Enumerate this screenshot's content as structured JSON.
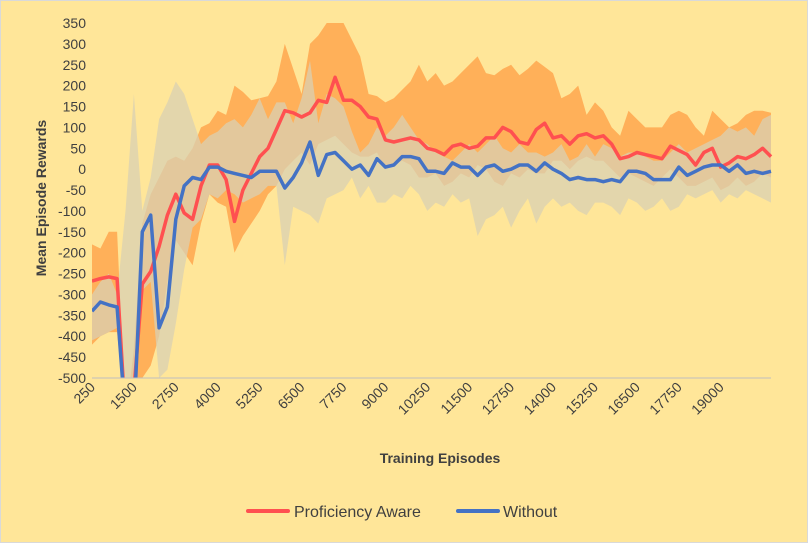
{
  "chart_data": {
    "type": "line",
    "title": "",
    "xlabel": "Training Episodes",
    "ylabel": "Mean Episode Rewards",
    "ylim": [
      -500,
      350
    ],
    "y_ticks": [
      350,
      300,
      250,
      200,
      150,
      100,
      50,
      0,
      -50,
      -100,
      -150,
      -200,
      -250,
      -300,
      -350,
      -400,
      -450,
      -500
    ],
    "x_tick_labels": [
      "250",
      "1500",
      "2750",
      "4000",
      "5250",
      "6500",
      "7750",
      "9000",
      "10250",
      "11500",
      "12750",
      "14000",
      "15250",
      "16500",
      "17750",
      "19000"
    ],
    "x_start": 250,
    "x_step": 250,
    "grid": false,
    "legend_position": "bottom",
    "series": [
      {
        "name": "Proficiency Aware",
        "color": "#ff5050",
        "band_color": "#ffa64d",
        "values": [
          -268,
          -262,
          -258,
          -262,
          -600,
          -530,
          -275,
          -245,
          -185,
          -110,
          -60,
          -105,
          -120,
          -40,
          10,
          10,
          -25,
          -125,
          -50,
          -10,
          30,
          50,
          95,
          140,
          135,
          125,
          135,
          165,
          160,
          220,
          165,
          165,
          150,
          125,
          120,
          70,
          65,
          70,
          75,
          70,
          50,
          45,
          35,
          55,
          60,
          50,
          55,
          75,
          75,
          100,
          90,
          65,
          60,
          95,
          110,
          75,
          80,
          60,
          80,
          85,
          75,
          80,
          60,
          25,
          30,
          40,
          35,
          30,
          25,
          55,
          45,
          35,
          10,
          40,
          50,
          5,
          15,
          30,
          25,
          35,
          50,
          30
        ],
        "upper": [
          -180,
          -190,
          -150,
          -150,
          -600,
          -430,
          -130,
          -60,
          -20,
          20,
          30,
          20,
          50,
          100,
          110,
          140,
          130,
          200,
          185,
          165,
          170,
          175,
          210,
          300,
          240,
          180,
          300,
          320,
          350,
          350,
          350,
          310,
          270,
          180,
          175,
          160,
          170,
          190,
          210,
          250,
          210,
          230,
          200,
          210,
          230,
          250,
          270,
          230,
          225,
          240,
          250,
          225,
          240,
          260,
          245,
          230,
          170,
          180,
          200,
          130,
          160,
          140,
          100,
          80,
          140,
          120,
          100,
          100,
          100,
          130,
          140,
          130,
          100,
          80,
          140,
          120,
          100,
          110,
          130,
          140,
          140,
          135
        ],
        "lower": [
          -420,
          -400,
          -390,
          -390,
          -600,
          -600,
          -500,
          -470,
          -400,
          -270,
          -170,
          -200,
          -230,
          -130,
          -60,
          -80,
          -90,
          -200,
          -160,
          -130,
          -100,
          -60,
          -40,
          0,
          20,
          40,
          10,
          60,
          70,
          80,
          60,
          40,
          30,
          30,
          40,
          0,
          10,
          20,
          10,
          -20,
          -20,
          -10,
          -40,
          -30,
          -10,
          -20,
          10,
          0,
          -30,
          -40,
          -10,
          -20,
          0,
          -10,
          -10,
          20,
          20,
          0,
          20,
          30,
          20,
          20,
          0,
          -20,
          -10,
          -20,
          -30,
          -40,
          -20,
          0,
          -20,
          -40,
          -40,
          -30,
          -20,
          -50,
          -40,
          -20,
          -40,
          -30,
          -10,
          -20
        ]
      },
      {
        "name": "Without",
        "color": "#4472c4",
        "band_color": "#d9d0b3",
        "values": [
          -340,
          -318,
          -325,
          -330,
          -600,
          -600,
          -150,
          -110,
          -380,
          -330,
          -120,
          -40,
          -20,
          -25,
          5,
          5,
          -5,
          -10,
          -15,
          -20,
          -5,
          -5,
          -5,
          -45,
          -20,
          15,
          65,
          -15,
          35,
          40,
          20,
          0,
          10,
          -15,
          25,
          5,
          10,
          30,
          30,
          25,
          -5,
          -5,
          -10,
          15,
          5,
          5,
          -15,
          5,
          10,
          -5,
          0,
          10,
          10,
          -5,
          15,
          0,
          -10,
          -25,
          -20,
          -25,
          -25,
          -30,
          -25,
          -30,
          -5,
          -5,
          -10,
          -25,
          -25,
          -25,
          5,
          -15,
          -5,
          5,
          10,
          10,
          -5,
          10,
          -10,
          -5,
          -10,
          -5
        ],
        "upper": [
          -300,
          -270,
          -250,
          -300,
          -100,
          180,
          -100,
          -20,
          120,
          160,
          210,
          180,
          120,
          60,
          80,
          90,
          110,
          120,
          100,
          130,
          170,
          120,
          160,
          160,
          110,
          170,
          260,
          110,
          180,
          170,
          150,
          90,
          40,
          60,
          100,
          80,
          100,
          130,
          100,
          70,
          60,
          40,
          30,
          20,
          40,
          60,
          40,
          60,
          80,
          50,
          40,
          60,
          40,
          40,
          30,
          40,
          60,
          20,
          30,
          60,
          30,
          60,
          50,
          30,
          40,
          40,
          30,
          20,
          20,
          40,
          60,
          40,
          50,
          60,
          70,
          80,
          100,
          90,
          100,
          80,
          120,
          130
        ],
        "lower": [
          -410,
          -400,
          -390,
          -380,
          -600,
          -600,
          -290,
          -270,
          -500,
          -480,
          -370,
          -240,
          -140,
          -120,
          -60,
          -70,
          -50,
          -60,
          -80,
          -70,
          -60,
          -40,
          -40,
          -230,
          -90,
          -100,
          -110,
          -130,
          -70,
          -60,
          -50,
          -20,
          -70,
          -40,
          -80,
          -80,
          -60,
          -70,
          -40,
          -60,
          -100,
          -80,
          -90,
          -60,
          -80,
          -70,
          -160,
          -120,
          -110,
          -90,
          -140,
          -100,
          -70,
          -130,
          -90,
          -70,
          -90,
          -80,
          -100,
          -110,
          -80,
          -80,
          -90,
          -110,
          -70,
          -80,
          -100,
          -90,
          -70,
          -100,
          -90,
          -60,
          -70,
          -60,
          -50,
          -80,
          -60,
          -70,
          -50,
          -60,
          -70,
          -80
        ]
      }
    ]
  }
}
